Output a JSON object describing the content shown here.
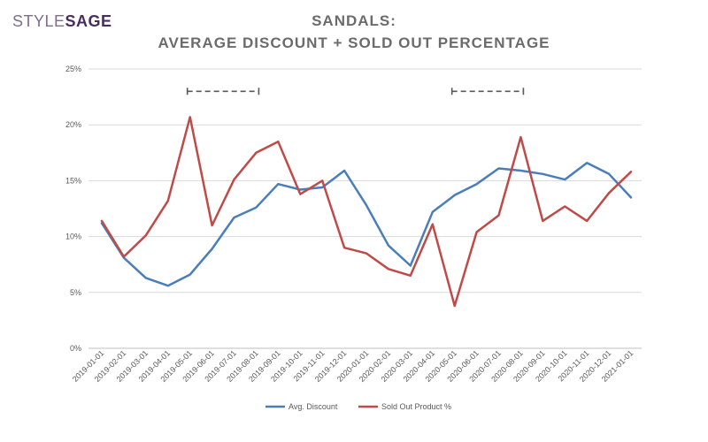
{
  "brand": {
    "logo_part1": "STYLE",
    "logo_part2": "SAGE"
  },
  "chart_data": {
    "type": "line",
    "title": "SANDALS:",
    "subtitle": "AVERAGE DISCOUNT + SOLD OUT PERCENTAGE",
    "xlabel": "",
    "ylabel": "",
    "ylim": [
      0,
      25
    ],
    "yticks": [
      "0%",
      "5%",
      "10%",
      "15%",
      "20%",
      "25%"
    ],
    "grid": true,
    "legend_position": "bottom",
    "categories": [
      "2019-01-01",
      "2019-02-01",
      "2019-03-01",
      "2019-04-01",
      "2019-05-01",
      "2019-06-01",
      "2019-07-01",
      "2019-08-01",
      "2019-09-01",
      "2019-10-01",
      "2019-11-01",
      "2019-12-01",
      "2020-01-01",
      "2020-02-01",
      "2020-03-01",
      "2020-04-01",
      "2020-05-01",
      "2020-06-01",
      "2020-07-01",
      "2020-08-01",
      "2020-09-01",
      "2020-10-01",
      "2020-11-01",
      "2020-12-01",
      "2021-01-01"
    ],
    "series": [
      {
        "name": "Avg. Discount",
        "color": "#4a7ebb",
        "values": [
          11.2,
          8.1,
          6.3,
          5.6,
          6.6,
          8.9,
          11.7,
          12.6,
          14.7,
          14.2,
          14.4,
          15.9,
          12.8,
          9.2,
          7.4,
          12.2,
          13.7,
          14.7,
          16.1,
          15.9,
          15.6,
          15.1,
          16.6,
          15.6,
          13.5
        ]
      },
      {
        "name": "Sold Out Product %",
        "color": "#be4b48",
        "values": [
          11.4,
          8.2,
          10.1,
          13.2,
          20.7,
          11.0,
          15.1,
          17.5,
          18.5,
          13.8,
          15.0,
          9.0,
          8.5,
          7.1,
          6.5,
          11.1,
          3.8,
          10.4,
          11.9,
          18.9,
          11.4,
          12.7,
          11.4,
          13.9,
          15.8
        ]
      }
    ],
    "annotations": [
      {
        "type": "dashed-bracket",
        "from": "2019-05-01",
        "to": "2019-08-01",
        "y": 23
      },
      {
        "type": "dashed-bracket",
        "from": "2020-05-01",
        "to": "2020-08-01",
        "y": 23
      }
    ]
  }
}
